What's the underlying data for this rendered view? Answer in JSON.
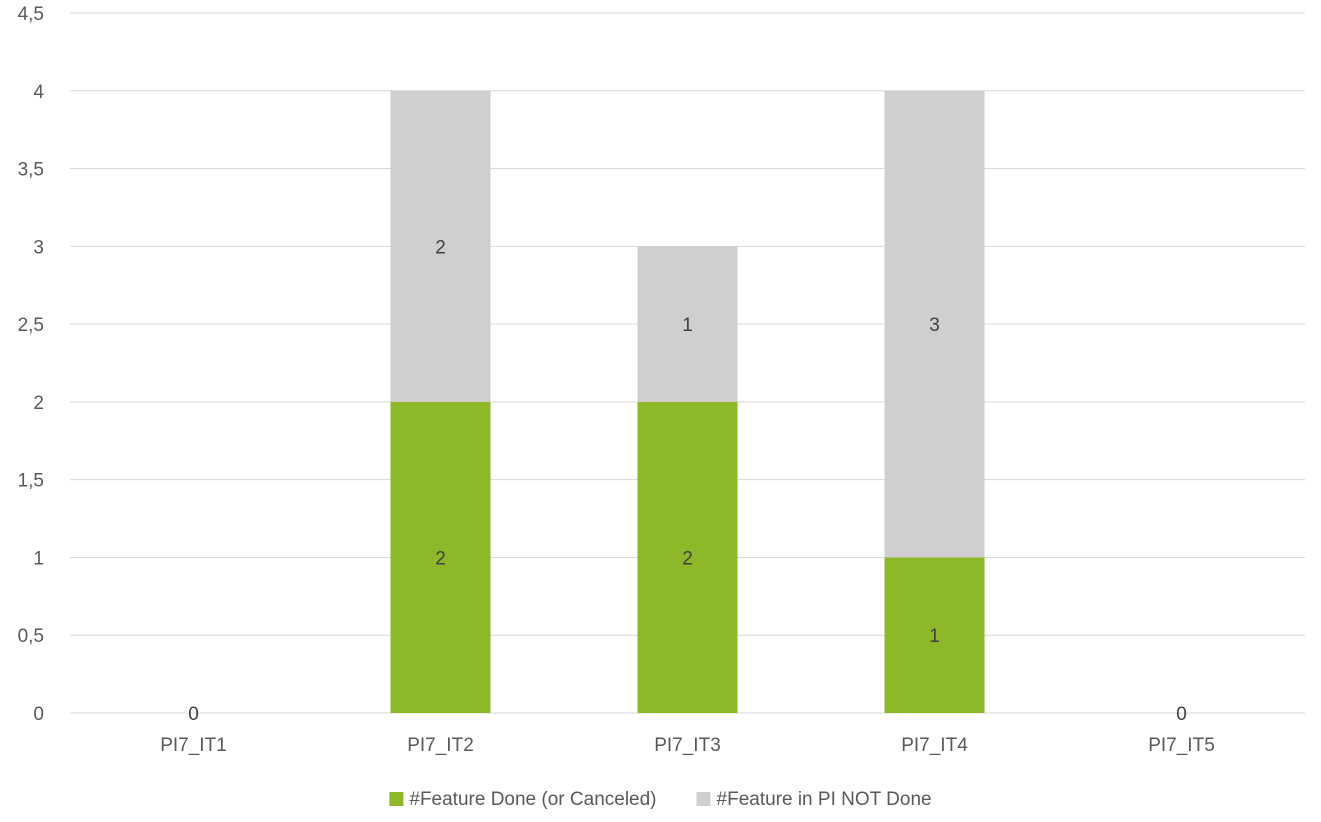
{
  "chart_data": {
    "type": "bar",
    "stacked": true,
    "categories": [
      "PI7_IT1",
      "PI7_IT2",
      "PI7_IT3",
      "PI7_IT4",
      "PI7_IT5"
    ],
    "series": [
      {
        "name": "#Feature Done (or Canceled)",
        "values": [
          0,
          2,
          2,
          1,
          0
        ],
        "color": "#8CB82A"
      },
      {
        "name": "#Feature in PI NOT Done",
        "values": [
          0,
          2,
          1,
          3,
          0
        ],
        "color": "#D0CECE"
      }
    ],
    "ylim": [
      0,
      4.5
    ],
    "yticks": [
      "0",
      "0,5",
      "1",
      "1,5",
      "2",
      "2,5",
      "3",
      "3,5",
      "4",
      "4,5"
    ],
    "ytick_values": [
      0,
      0.5,
      1,
      1.5,
      2,
      2.5,
      3,
      3.5,
      4,
      4.5
    ],
    "data_labels": [
      {
        "category": "PI7_IT1",
        "series": "#Feature Done (or Canceled)",
        "text": "0"
      },
      {
        "category": "PI7_IT2",
        "series": "#Feature Done (or Canceled)",
        "text": "2"
      },
      {
        "category": "PI7_IT2",
        "series": "#Feature in PI NOT Done",
        "text": "2"
      },
      {
        "category": "PI7_IT3",
        "series": "#Feature Done (or Canceled)",
        "text": "2"
      },
      {
        "category": "PI7_IT3",
        "series": "#Feature in PI NOT Done",
        "text": "1"
      },
      {
        "category": "PI7_IT4",
        "series": "#Feature Done (or Canceled)",
        "text": "1"
      },
      {
        "category": "PI7_IT4",
        "series": "#Feature in PI NOT Done",
        "text": "3"
      },
      {
        "category": "PI7_IT5",
        "series": "#Feature Done (or Canceled)",
        "text": "0"
      }
    ],
    "grid": true,
    "legend": "bottom",
    "colors": {
      "gridline": "#D9D9D9",
      "axis_text": "#595959"
    }
  }
}
